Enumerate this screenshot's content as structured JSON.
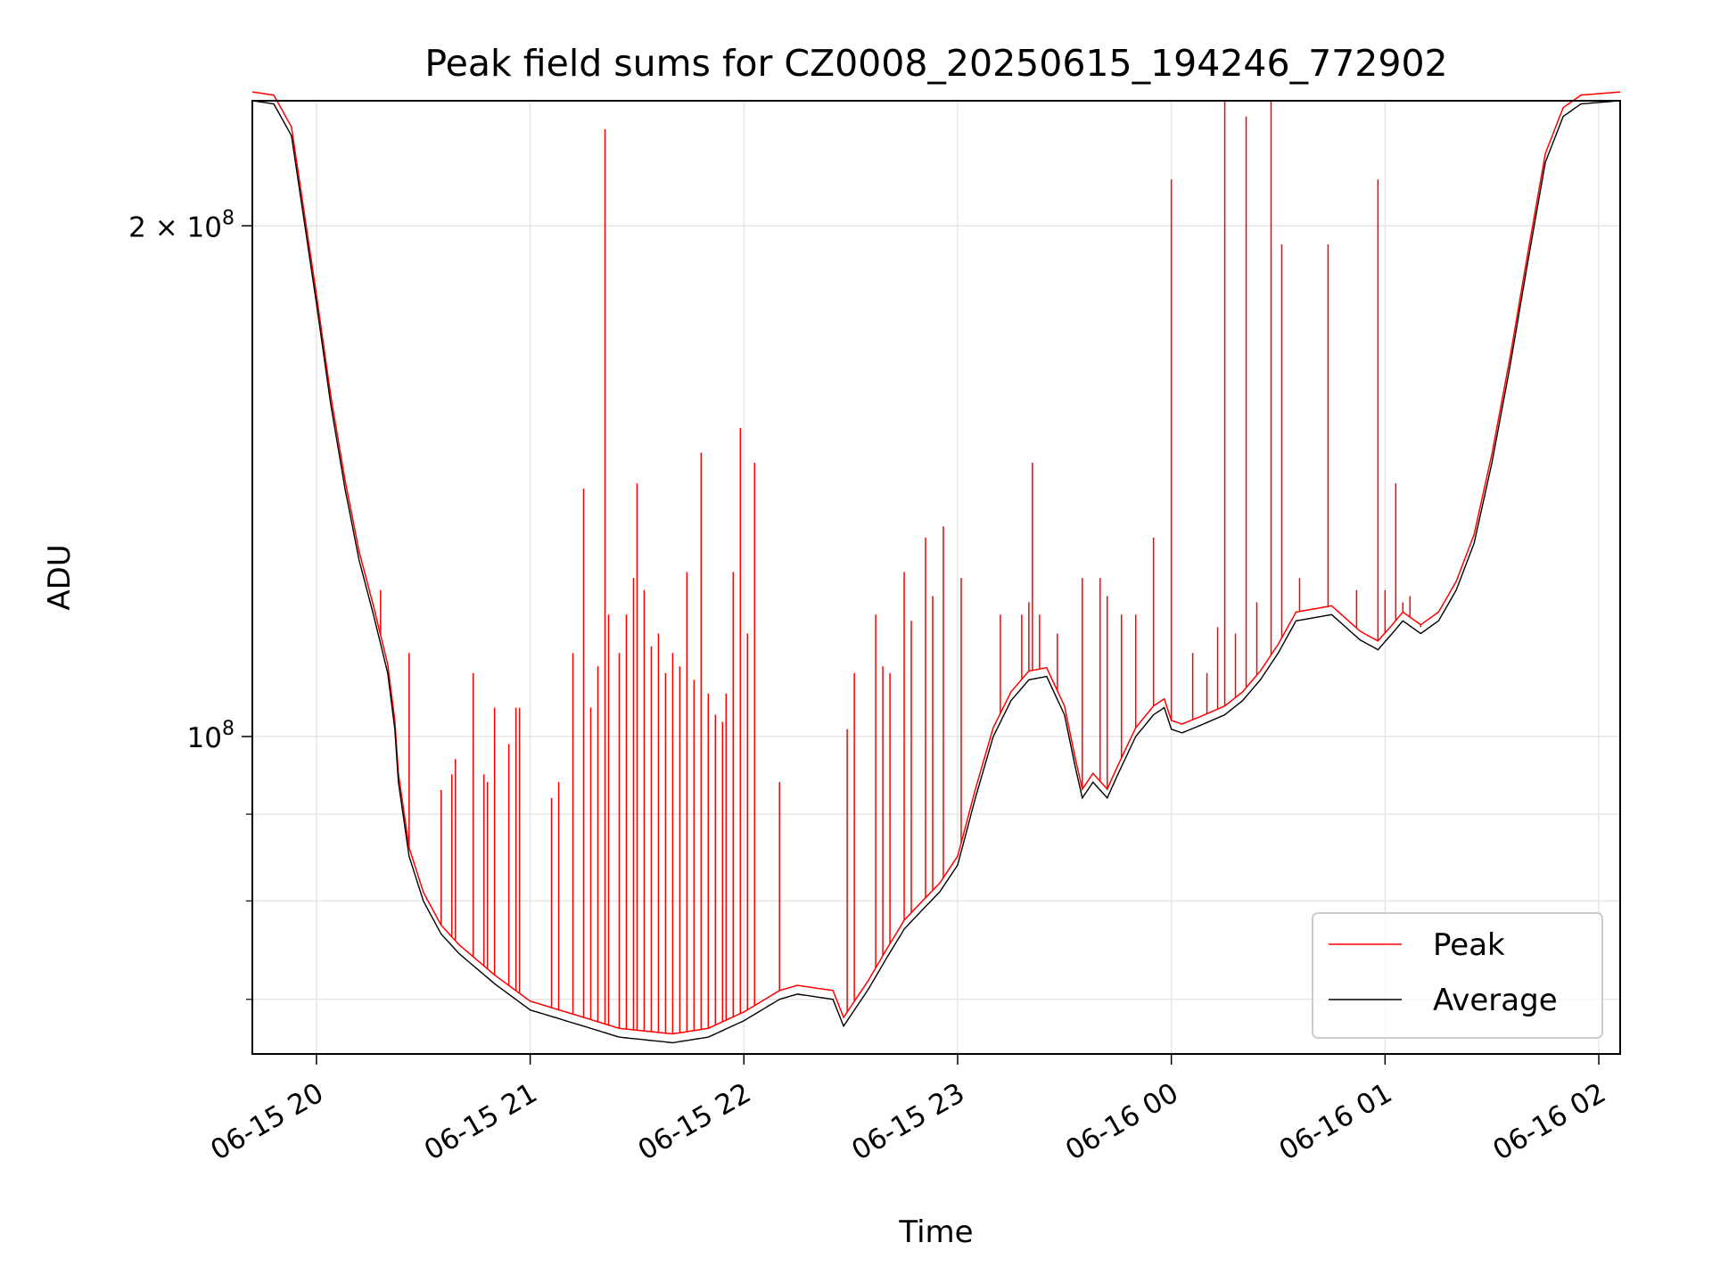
{
  "chart_data": {
    "type": "line",
    "title": "Peak field sums for CZ0008_20250615_194246_772902",
    "xlabel": "Time",
    "ylabel": "ADU",
    "yscale": "log",
    "grid": true,
    "legend_placement": "lower-right",
    "xlim": [
      "2025-06-15 19:42",
      "2025-06-16 02:06"
    ],
    "ylim": [
      65000000,
      237000000
    ],
    "x_ticks": [
      "06-15 20",
      "06-15 21",
      "06-15 22",
      "06-15 23",
      "06-16 00",
      "06-16 01",
      "06-16 02"
    ],
    "y_ticks": [
      {
        "value": 200000000,
        "label_base": "2 × 10",
        "label_exp": "8"
      },
      {
        "value": 100000000,
        "label_base": "10",
        "label_exp": "8"
      }
    ],
    "y_minor_ticks": [
      70000000,
      80000000,
      90000000
    ],
    "series": [
      {
        "name": "Peak",
        "color": "#ff0000"
      },
      {
        "name": "Average",
        "color": "#000000"
      }
    ],
    "average_curve": [
      [
        "2025-06-15 19:42",
        237000000
      ],
      [
        "2025-06-15 19:48",
        236000000
      ],
      [
        "2025-06-15 19:53",
        226000000
      ],
      [
        "2025-06-15 19:56",
        205000000
      ],
      [
        "2025-06-15 20:00",
        180000000
      ],
      [
        "2025-06-15 20:04",
        157000000
      ],
      [
        "2025-06-15 20:08",
        140000000
      ],
      [
        "2025-06-15 20:12",
        127000000
      ],
      [
        "2025-06-15 20:16",
        118000000
      ],
      [
        "2025-06-15 20:20",
        109000000
      ],
      [
        "2025-06-15 20:22",
        101000000
      ],
      [
        "2025-06-15 20:23",
        94000000
      ],
      [
        "2025-06-15 20:26",
        85000000
      ],
      [
        "2025-06-15 20:30",
        80000000
      ],
      [
        "2025-06-15 20:35",
        76500000
      ],
      [
        "2025-06-15 20:40",
        74500000
      ],
      [
        "2025-06-15 20:50",
        71500000
      ],
      [
        "2025-06-15 21:00",
        69000000
      ],
      [
        "2025-06-15 21:15",
        67500000
      ],
      [
        "2025-06-15 21:25",
        66500000
      ],
      [
        "2025-06-15 21:40",
        66000000
      ],
      [
        "2025-06-15 21:50",
        66500000
      ],
      [
        "2025-06-15 22:00",
        68000000
      ],
      [
        "2025-06-15 22:10",
        70000000
      ],
      [
        "2025-06-15 22:15",
        70500000
      ],
      [
        "2025-06-15 22:25",
        70000000
      ],
      [
        "2025-06-15 22:28",
        67500000
      ],
      [
        "2025-06-15 22:35",
        71000000
      ],
      [
        "2025-06-15 22:40",
        74000000
      ],
      [
        "2025-06-15 22:45",
        77000000
      ],
      [
        "2025-06-15 22:50",
        79000000
      ],
      [
        "2025-06-15 22:55",
        81000000
      ],
      [
        "2025-06-15 23:00",
        84000000
      ],
      [
        "2025-06-15 23:05",
        92000000
      ],
      [
        "2025-06-15 23:10",
        100000000
      ],
      [
        "2025-06-15 23:15",
        105000000
      ],
      [
        "2025-06-15 23:20",
        108000000
      ],
      [
        "2025-06-15 23:25",
        108500000
      ],
      [
        "2025-06-15 23:30",
        103000000
      ],
      [
        "2025-06-15 23:33",
        96000000
      ],
      [
        "2025-06-15 23:35",
        92000000
      ],
      [
        "2025-06-15 23:38",
        94000000
      ],
      [
        "2025-06-15 23:42",
        92000000
      ],
      [
        "2025-06-15 23:45",
        95000000
      ],
      [
        "2025-06-15 23:50",
        100000000
      ],
      [
        "2025-06-15 23:55",
        103000000
      ],
      [
        "2025-06-15 23:58",
        104000000
      ],
      [
        "2025-06-16 00:00",
        101000000
      ],
      [
        "2025-06-16 00:03",
        100500000
      ],
      [
        "2025-06-16 00:08",
        101500000
      ],
      [
        "2025-06-16 00:15",
        103000000
      ],
      [
        "2025-06-16 00:20",
        105000000
      ],
      [
        "2025-06-16 00:25",
        108000000
      ],
      [
        "2025-06-16 00:30",
        112000000
      ],
      [
        "2025-06-16 00:35",
        117000000
      ],
      [
        "2025-06-16 00:45",
        118000000
      ],
      [
        "2025-06-16 00:53",
        114000000
      ],
      [
        "2025-06-16 00:58",
        112500000
      ],
      [
        "2025-06-16 01:02",
        115000000
      ],
      [
        "2025-06-16 01:05",
        117000000
      ],
      [
        "2025-06-16 01:10",
        115000000
      ],
      [
        "2025-06-16 01:15",
        117000000
      ],
      [
        "2025-06-16 01:20",
        122000000
      ],
      [
        "2025-06-16 01:25",
        130000000
      ],
      [
        "2025-06-16 01:30",
        145000000
      ],
      [
        "2025-06-16 01:35",
        165000000
      ],
      [
        "2025-06-16 01:40",
        190000000
      ],
      [
        "2025-06-16 01:45",
        218000000
      ],
      [
        "2025-06-16 01:50",
        232000000
      ],
      [
        "2025-06-16 01:55",
        236000000
      ],
      [
        "2025-06-16 02:06",
        237000000
      ]
    ],
    "peak_spikes": [
      [
        "2025-06-15 20:18",
        122000000
      ],
      [
        "2025-06-15 20:26",
        112000000
      ],
      [
        "2025-06-15 20:35",
        93000000
      ],
      [
        "2025-06-15 20:38",
        95000000
      ],
      [
        "2025-06-15 20:39",
        97000000
      ],
      [
        "2025-06-15 20:44",
        109000000
      ],
      [
        "2025-06-15 20:47",
        95000000
      ],
      [
        "2025-06-15 20:48",
        94000000
      ],
      [
        "2025-06-15 20:50",
        104000000
      ],
      [
        "2025-06-15 20:54",
        99000000
      ],
      [
        "2025-06-15 20:56",
        104000000
      ],
      [
        "2025-06-15 20:57",
        104000000
      ],
      [
        "2025-06-15 21:06",
        92000000
      ],
      [
        "2025-06-15 21:08",
        94000000
      ],
      [
        "2025-06-15 21:12",
        112000000
      ],
      [
        "2025-06-15 21:15",
        140000000
      ],
      [
        "2025-06-15 21:17",
        104000000
      ],
      [
        "2025-06-15 21:19",
        110000000
      ],
      [
        "2025-06-15 21:21",
        228000000
      ],
      [
        "2025-06-15 21:22",
        118000000
      ],
      [
        "2025-06-15 21:25",
        112000000
      ],
      [
        "2025-06-15 21:27",
        118000000
      ],
      [
        "2025-06-15 21:29",
        124000000
      ],
      [
        "2025-06-15 21:30",
        141000000
      ],
      [
        "2025-06-15 21:32",
        122000000
      ],
      [
        "2025-06-15 21:34",
        113000000
      ],
      [
        "2025-06-15 21:36",
        115000000
      ],
      [
        "2025-06-15 21:38",
        109000000
      ],
      [
        "2025-06-15 21:40",
        112000000
      ],
      [
        "2025-06-15 21:42",
        110000000
      ],
      [
        "2025-06-15 21:44",
        125000000
      ],
      [
        "2025-06-15 21:46",
        108000000
      ],
      [
        "2025-06-15 21:48",
        147000000
      ],
      [
        "2025-06-15 21:50",
        106000000
      ],
      [
        "2025-06-15 21:52",
        103000000
      ],
      [
        "2025-06-15 21:54",
        102000000
      ],
      [
        "2025-06-15 21:55",
        106000000
      ],
      [
        "2025-06-15 21:57",
        125000000
      ],
      [
        "2025-06-15 21:59",
        152000000
      ],
      [
        "2025-06-15 22:01",
        115000000
      ],
      [
        "2025-06-15 22:03",
        145000000
      ],
      [
        "2025-06-15 22:10",
        94000000
      ],
      [
        "2025-06-15 22:29",
        101000000
      ],
      [
        "2025-06-15 22:31",
        109000000
      ],
      [
        "2025-06-15 22:37",
        118000000
      ],
      [
        "2025-06-15 22:39",
        110000000
      ],
      [
        "2025-06-15 22:41",
        109000000
      ],
      [
        "2025-06-15 22:45",
        125000000
      ],
      [
        "2025-06-15 22:47",
        117000000
      ],
      [
        "2025-06-15 22:51",
        131000000
      ],
      [
        "2025-06-15 22:53",
        121000000
      ],
      [
        "2025-06-15 22:56",
        133000000
      ],
      [
        "2025-06-15 23:01",
        124000000
      ],
      [
        "2025-06-15 23:12",
        118000000
      ],
      [
        "2025-06-15 23:18",
        118000000
      ],
      [
        "2025-06-15 23:20",
        120000000
      ],
      [
        "2025-06-15 23:21",
        145000000
      ],
      [
        "2025-06-15 23:23",
        118000000
      ],
      [
        "2025-06-15 23:28",
        115000000
      ],
      [
        "2025-06-15 23:35",
        124000000
      ],
      [
        "2025-06-15 23:40",
        124000000
      ],
      [
        "2025-06-15 23:42",
        121000000
      ],
      [
        "2025-06-15 23:46",
        118000000
      ],
      [
        "2025-06-15 23:50",
        118000000
      ],
      [
        "2025-06-15 23:55",
        131000000
      ],
      [
        "2025-06-16 00:00",
        213000000
      ],
      [
        "2025-06-16 00:06",
        112000000
      ],
      [
        "2025-06-16 00:10",
        109000000
      ],
      [
        "2025-06-16 00:13",
        116000000
      ],
      [
        "2025-06-16 00:15",
        237000000
      ],
      [
        "2025-06-16 00:18",
        115000000
      ],
      [
        "2025-06-16 00:21",
        232000000
      ],
      [
        "2025-06-16 00:24",
        120000000
      ],
      [
        "2025-06-16 00:28",
        237000000
      ],
      [
        "2025-06-16 00:31",
        195000000
      ],
      [
        "2025-06-16 00:36",
        124000000
      ],
      [
        "2025-06-16 00:44",
        195000000
      ],
      [
        "2025-06-16 00:52",
        122000000
      ],
      [
        "2025-06-16 00:58",
        213000000
      ],
      [
        "2025-06-16 01:00",
        122000000
      ],
      [
        "2025-06-16 01:03",
        141000000
      ],
      [
        "2025-06-16 01:05",
        120000000
      ],
      [
        "2025-06-16 01:07",
        121000000
      ],
      [
        "2025-06-16 01:10",
        116000000
      ]
    ]
  },
  "legend": {
    "items": [
      {
        "label": "Peak",
        "color": "#ff0000"
      },
      {
        "label": "Average",
        "color": "#000000"
      }
    ]
  }
}
